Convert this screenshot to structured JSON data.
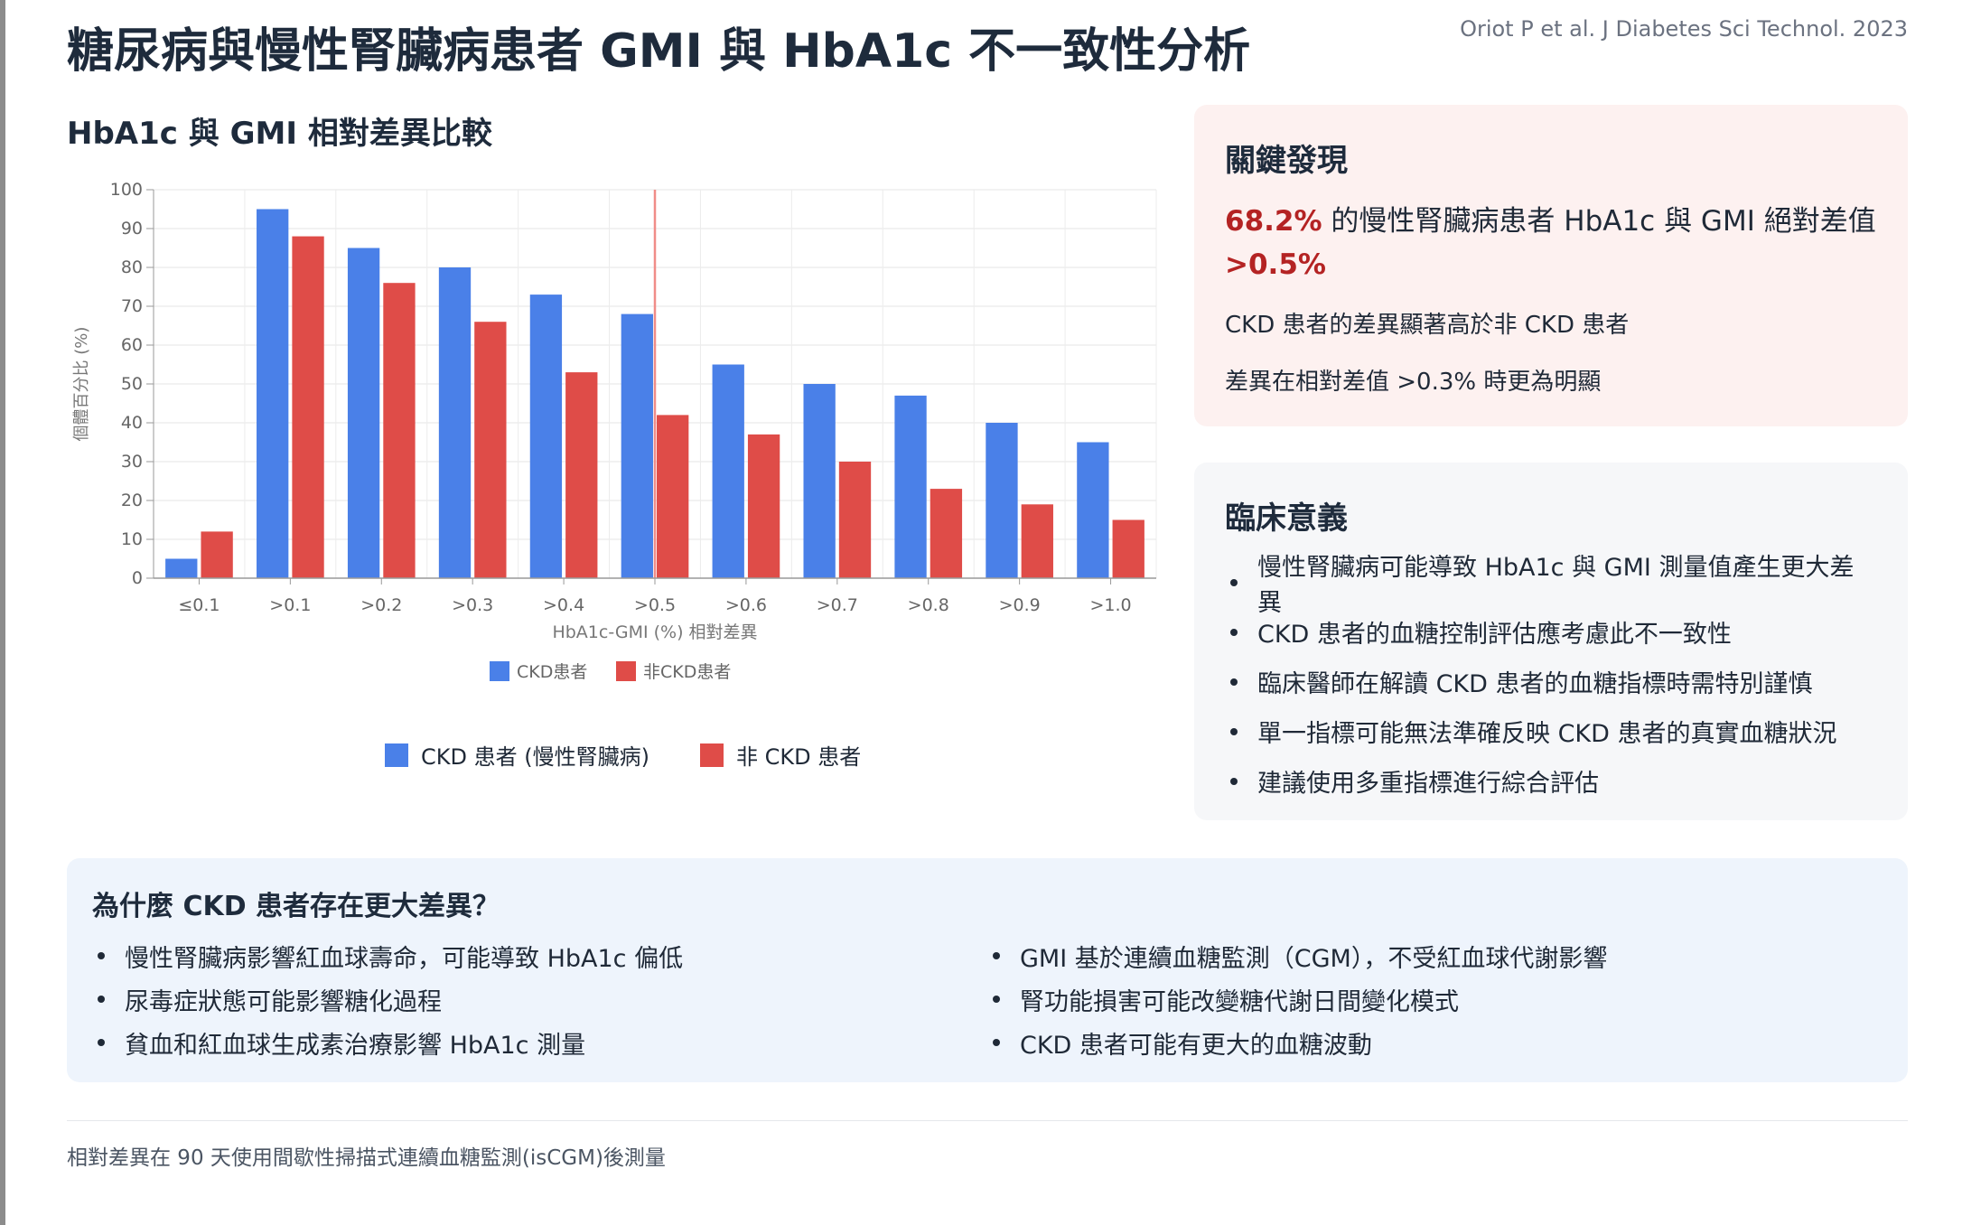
{
  "header": {
    "title": "糖尿病與慢性腎臟病患者 GMI 與 HbA1c 不一致性分析",
    "citation": "Oriot P et al. J Diabetes Sci Technol. 2023"
  },
  "chart_section": {
    "title": "HbA1c 與 GMI 相對差異比較"
  },
  "chart_data": {
    "type": "bar",
    "title": "",
    "xlabel": "HbA1c-GMI (%) 相對差異",
    "ylabel": "個體百分比 (%)",
    "categories": [
      "≤0.1",
      ">0.1",
      ">0.2",
      ">0.3",
      ">0.4",
      ">0.5",
      ">0.6",
      ">0.7",
      ">0.8",
      ">0.9",
      ">1.0"
    ],
    "series": [
      {
        "name": "CKD患者",
        "color": "#4a80e8",
        "values": [
          5,
          95,
          85,
          80,
          73,
          68,
          55,
          50,
          47,
          40,
          35
        ]
      },
      {
        "name": "非CKD患者",
        "color": "#df4c48",
        "values": [
          12,
          88,
          76,
          66,
          53,
          42,
          37,
          30,
          23,
          19,
          15
        ]
      }
    ],
    "ylim": [
      0,
      100
    ],
    "yticks": [
      0,
      10,
      20,
      30,
      40,
      50,
      60,
      70,
      80,
      90,
      100
    ],
    "reference_line": {
      "category": ">0.5",
      "color": "#f08c88"
    },
    "grid": true,
    "legend": "bottom"
  },
  "legend_extra": {
    "ckd_label": "CKD 患者 (慢性腎臟病)",
    "non_ckd_label": "非 CKD 患者",
    "ckd_color": "#4a80e8",
    "non_ckd_color": "#df4c48"
  },
  "findings": {
    "title": "關鍵發現",
    "highlight_value": "68.2%",
    "highlight_text": " 的慢性腎臟病患者 HbA1c 與 GMI 絕對差值 ",
    "highlight_threshold": ">0.5%",
    "line1": "CKD 患者的差異顯著高於非 CKD 患者",
    "line2": "差異在相對差值 >0.3% 時更為明顯"
  },
  "clinical": {
    "title": "臨床意義",
    "items": [
      "慢性腎臟病可能導致 HbA1c 與 GMI 測量值產生更大差異",
      "CKD 患者的血糖控制評估應考慮此不一致性",
      "臨床醫師在解讀 CKD 患者的血糖指標時需特別謹慎",
      "單一指標可能無法準確反映 CKD 患者的真實血糖狀況",
      "建議使用多重指標進行綜合評估"
    ]
  },
  "why": {
    "title": "為什麼 CKD 患者存在更大差異？",
    "left": [
      "慢性腎臟病影響紅血球壽命，可能導致 HbA1c 偏低",
      "尿毒症狀態可能影響糖化過程",
      "貧血和紅血球生成素治療影響 HbA1c 測量"
    ],
    "right": [
      "GMI 基於連續血糖監測（CGM），不受紅血球代謝影響",
      "腎功能損害可能改變糖代謝日間變化模式",
      "CKD 患者可能有更大的血糖波動"
    ]
  },
  "footer": {
    "note": "相對差異在 90 天使用間歇性掃描式連續血糖監測(isCGM)後測量"
  }
}
